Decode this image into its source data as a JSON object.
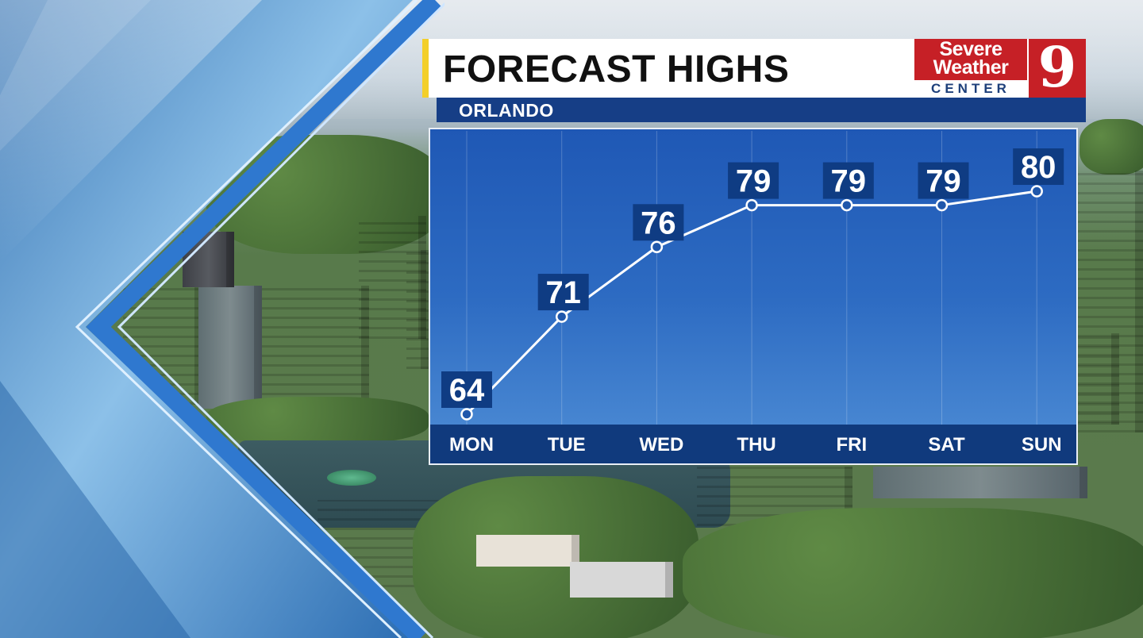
{
  "header": {
    "title": "FORECAST HIGHS",
    "location": "ORLANDO"
  },
  "logo": {
    "line1": "Severe",
    "line2": "Weather",
    "line3": "CENTER",
    "channel": "9"
  },
  "colors": {
    "title_accent": "#f3cf2a",
    "brand_red": "#c62026",
    "navy": "#163e86",
    "chart_blue": "#2d6bc2"
  },
  "chart_data": {
    "type": "line",
    "title": "FORECAST HIGHS",
    "subtitle": "ORLANDO",
    "categories": [
      "MON",
      "TUE",
      "WED",
      "THU",
      "FRI",
      "SAT",
      "SUN"
    ],
    "series": [
      {
        "values": [
          64,
          71,
          76,
          79,
          79,
          79,
          80
        ]
      }
    ],
    "ylim": [
      64,
      80
    ],
    "grid": true,
    "legend": "none",
    "data_labels": true
  }
}
